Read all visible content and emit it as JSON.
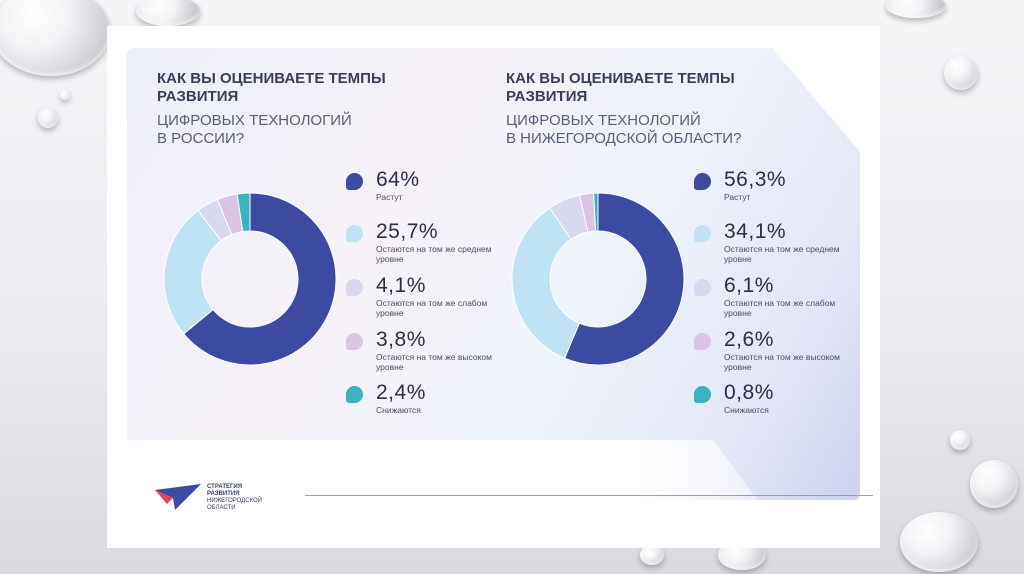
{
  "colors": {
    "grows": "#3d4aa1",
    "avg": "#bfe3f3",
    "weak": "#d8d8ee",
    "high": "#dcc4e4",
    "decline": "#3ab3bf"
  },
  "chart_data": [
    {
      "type": "pie",
      "title": "КАК ВЫ ОЦЕНИВАЕТЕ ТЕМПЫ РАЗВИТИЯ",
      "subtitle": "ЦИФРОВЫХ ТЕХНОЛОГИЙ В РОССИИ?",
      "categories": [
        "Растут",
        "Остаются на том же среднем уровне",
        "Остаются на том же слабом уровне",
        "Остаются на том же высоком уровне",
        "Снижаются"
      ],
      "values": [
        64,
        25.7,
        4.1,
        3.8,
        2.4
      ],
      "labels": [
        "64%",
        "25,7%",
        "4,1%",
        "3,8%",
        "2,4%"
      ]
    },
    {
      "type": "pie",
      "title": "КАК ВЫ ОЦЕНИВАЕТЕ ТЕМПЫ РАЗВИТИЯ",
      "subtitle": "ЦИФРОВЫХ ТЕХНОЛОГИЙ В НИЖЕГОРОДСКОЙ ОБЛАСТИ?",
      "categories": [
        "Растут",
        "Остаются на том же среднем уровне",
        "Остаются на том же слабом уровне",
        "Остаются на том же высоком уровне",
        "Снижаются"
      ],
      "values": [
        56.3,
        34.1,
        6.1,
        2.6,
        0.8
      ],
      "labels": [
        "56,3%",
        "34,1%",
        "6,1%",
        "2,6%",
        "0,8%"
      ]
    }
  ],
  "left": {
    "title_line1": "КАК ВЫ ОЦЕНИВАЕТЕ ТЕМПЫ",
    "title_line2": "РАЗВИТИЯ",
    "sub_line1": "ЦИФРОВЫХ ТЕХНОЛОГИЙ",
    "sub_line2": "В РОССИИ?",
    "legend": [
      {
        "value": "64%",
        "desc": "Растут"
      },
      {
        "value": "25,7%",
        "desc": "Остаются на том же среднем уровне"
      },
      {
        "value": "4,1%",
        "desc": "Остаются на том же слабом уровне"
      },
      {
        "value": "3,8%",
        "desc": "Остаются на том же высоком уровне"
      },
      {
        "value": "2,4%",
        "desc": "Снижаются"
      }
    ]
  },
  "right": {
    "title_line1": "КАК ВЫ ОЦЕНИВАЕТЕ ТЕМПЫ",
    "title_line2": "РАЗВИТИЯ",
    "sub_line1": "ЦИФРОВЫХ ТЕХНОЛОГИЙ",
    "sub_line2": "В НИЖЕГОРОДСКОЙ ОБЛАСТИ?",
    "legend": [
      {
        "value": "56,3%",
        "desc": "Растут"
      },
      {
        "value": "34,1%",
        "desc": "Остаются на том же среднем уровне"
      },
      {
        "value": "6,1%",
        "desc": "Остаются на том же слабом уровне"
      },
      {
        "value": "2,6%",
        "desc": "Остаются на том же высоком уровне"
      },
      {
        "value": "0,8%",
        "desc": "Снижаются"
      }
    ]
  },
  "logo": {
    "line1": "СТРАТЕГИЯ",
    "line2": "РАЗВИТИЯ",
    "line3": "НИЖЕГОРОДСКОЙ",
    "line4": "ОБЛАСТИ"
  }
}
